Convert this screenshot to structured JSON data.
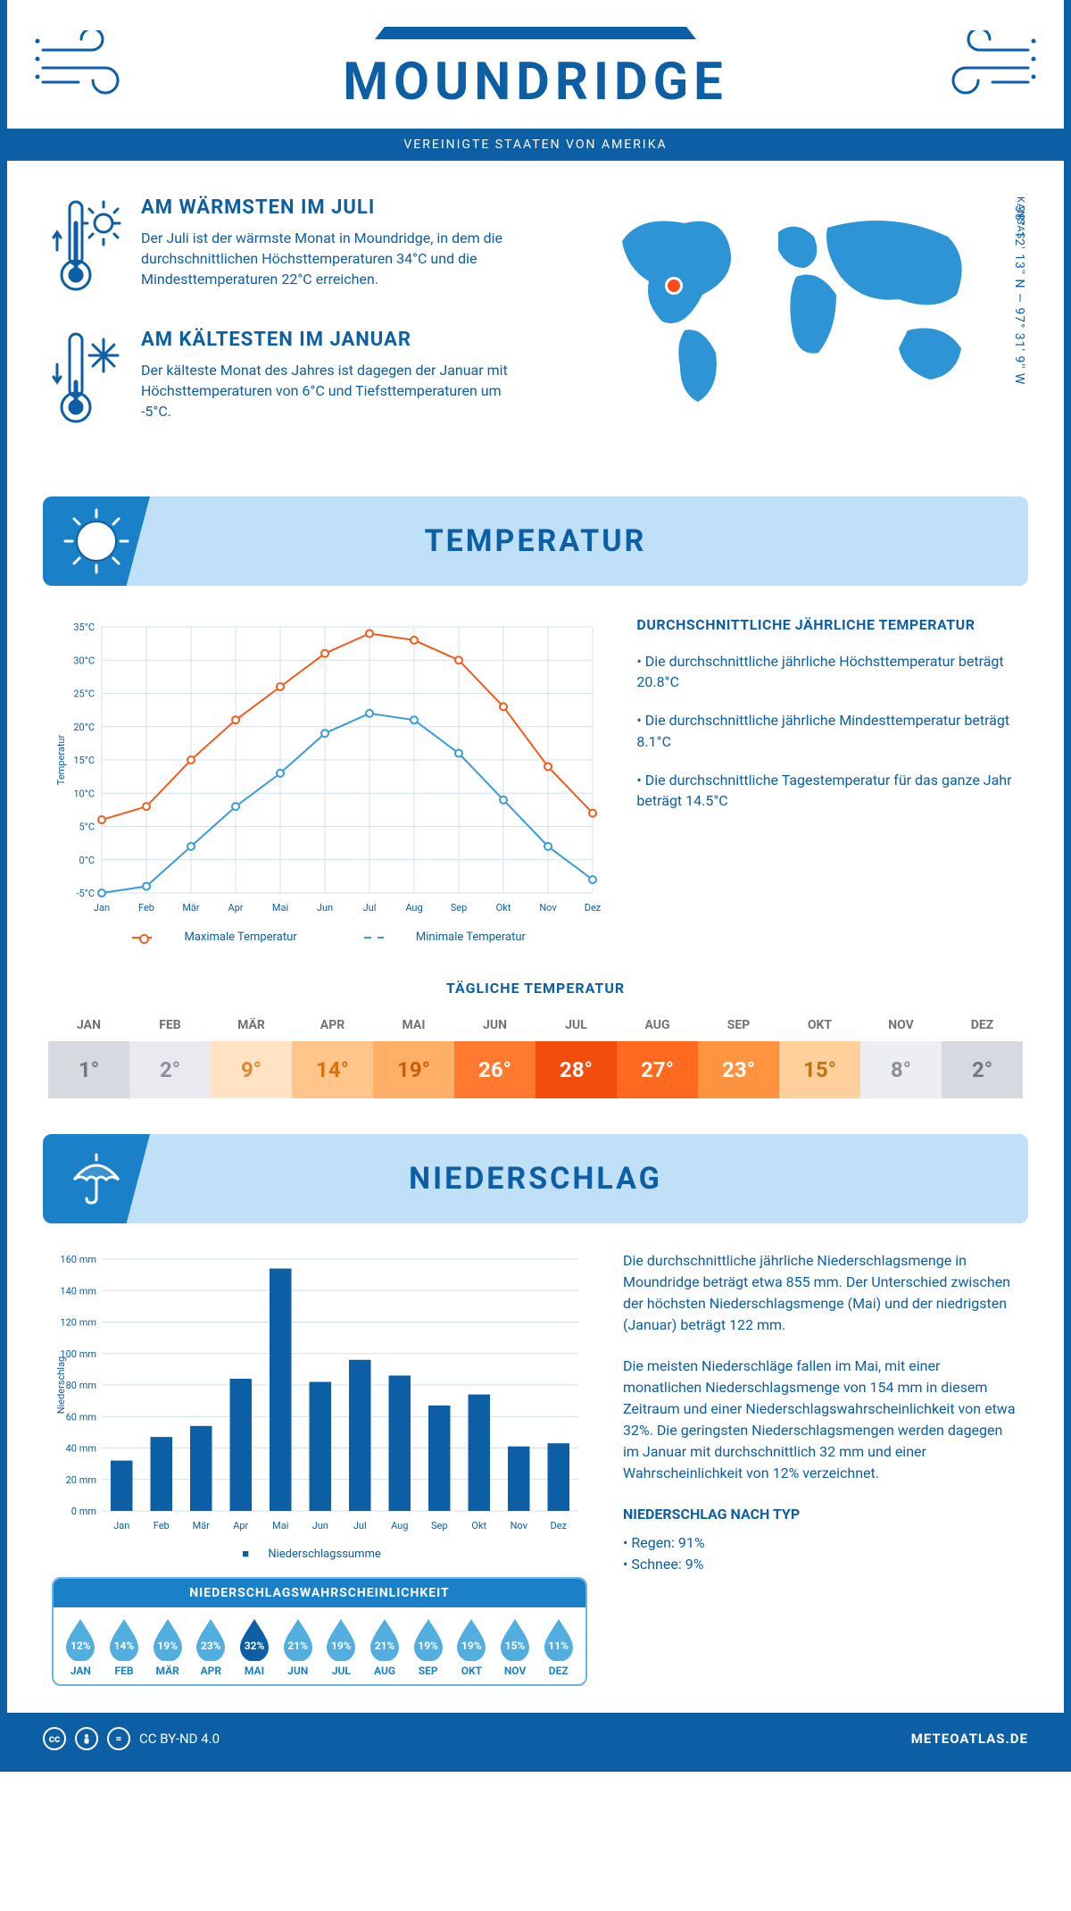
{
  "header": {
    "city": "MOUNDRIDGE",
    "country": "VEREINIGTE STAATEN VON AMERIKA",
    "state": "KANSAS",
    "coordinates": "38° 12' 13'' N — 97° 31' 9'' W"
  },
  "intro": {
    "warm_title": "AM WÄRMSTEN IM JULI",
    "warm_text": "Der Juli ist der wärmste Monat in Moundridge, in dem die durchschnittlichen Höchsttemperaturen 34°C und die Mindesttemperaturen 22°C erreichen.",
    "cold_title": "AM KÄLTESTEN IM JANUAR",
    "cold_text": "Der kälteste Monat des Jahres ist dagegen der Januar mit Höchsttemperaturen von 6°C und Tiefsttemperaturen um -5°C."
  },
  "temperature": {
    "section_title": "TEMPERATUR",
    "chart": {
      "type": "line",
      "months": [
        "Jan",
        "Feb",
        "Mär",
        "Apr",
        "Mai",
        "Jun",
        "Jul",
        "Aug",
        "Sep",
        "Okt",
        "Nov",
        "Dez"
      ],
      "max_values": [
        6,
        8,
        15,
        21,
        26,
        31,
        34,
        33,
        30,
        23,
        14,
        7
      ],
      "min_values": [
        -5,
        -4,
        2,
        8,
        13,
        19,
        22,
        21,
        16,
        9,
        2,
        -3
      ],
      "max_color": "#f25c1f",
      "min_color": "#3a9bd9",
      "ylim": [
        -5,
        35
      ],
      "ytick_step": 5,
      "y_unit": "°C",
      "ylabel": "Temperatur",
      "grid_color": "#d3e0ec",
      "background_color": "#ffffff",
      "line_width": 2,
      "marker_size": 4,
      "legend_max": "Maximale Temperatur",
      "legend_min": "Minimale Temperatur"
    },
    "copy_title": "DURCHSCHNITTLICHE JÄHRLICHE TEMPERATUR",
    "copy_bullets": [
      "• Die durchschnittliche jährliche Höchsttemperatur beträgt 20.8°C",
      "• Die durchschnittliche jährliche Mindesttemperatur beträgt 8.1°C",
      "• Die durchschnittliche Tagestemperatur für das ganze Jahr beträgt 14.5°C"
    ],
    "daily_title": "TÄGLICHE TEMPERATUR",
    "daily": {
      "months": [
        "JAN",
        "FEB",
        "MÄR",
        "APR",
        "MAI",
        "JUN",
        "JUL",
        "AUG",
        "SEP",
        "OKT",
        "NOV",
        "DEZ"
      ],
      "values": [
        "1°",
        "2°",
        "9°",
        "14°",
        "19°",
        "26°",
        "28°",
        "27°",
        "23°",
        "15°",
        "8°",
        "2°"
      ],
      "bg_colors": [
        "#d6d9e0",
        "#e8eaef",
        "#ffe3c2",
        "#ffc58a",
        "#ffb066",
        "#ff7a2e",
        "#f24d0d",
        "#ff6a1f",
        "#ff933f",
        "#ffcf9c",
        "#eceef2",
        "#d6d9e0"
      ],
      "text_colors": [
        "#6f7684",
        "#8b909c",
        "#e08a2f",
        "#d6730f",
        "#c85f06",
        "#ffffff",
        "#ffffff",
        "#ffffff",
        "#ffffff",
        "#c5700f",
        "#8b909c",
        "#6f7684"
      ]
    }
  },
  "precipitation": {
    "section_title": "NIEDERSCHLAG",
    "chart": {
      "type": "bar",
      "months": [
        "Jan",
        "Feb",
        "Mär",
        "Apr",
        "Mai",
        "Jun",
        "Jul",
        "Aug",
        "Sep",
        "Okt",
        "Nov",
        "Dez"
      ],
      "values_mm": [
        32,
        47,
        54,
        84,
        154,
        82,
        96,
        86,
        67,
        74,
        41,
        43
      ],
      "bar_color": "#0c5ea5",
      "ylim": [
        0,
        160
      ],
      "ytick_step": 20,
      "y_unit": " mm",
      "ylabel": "Niederschlag",
      "grid_color": "#d3e0ec",
      "bar_width": 0.55,
      "legend": "Niederschlagssumme"
    },
    "copy_p1": "Die durchschnittliche jährliche Niederschlagsmenge in Moundridge beträgt etwa 855 mm. Der Unterschied zwischen der höchsten Niederschlagsmenge (Mai) und der niedrigsten (Januar) beträgt 122 mm.",
    "copy_p2": "Die meisten Niederschläge fallen im Mai, mit einer monatlichen Niederschlagsmenge von 154 mm in diesem Zeitraum und einer Niederschlagswahrscheinlichkeit von etwa 32%. Die geringsten Niederschlagsmengen werden dagegen im Januar mit durchschnittlich 32 mm und einer Wahrscheinlichkeit von 12% verzeichnet.",
    "by_type_title": "NIEDERSCHLAG NACH TYP",
    "by_type_rain": "• Regen: 91%",
    "by_type_snow": "• Schnee: 9%",
    "probability": {
      "title": "NIEDERSCHLAGSWAHRSCHEINLICHKEIT",
      "months": [
        "JAN",
        "FEB",
        "MÄR",
        "APR",
        "MAI",
        "JUN",
        "JUL",
        "AUG",
        "SEP",
        "OKT",
        "NOV",
        "DEZ"
      ],
      "values": [
        "12%",
        "14%",
        "19%",
        "23%",
        "32%",
        "21%",
        "19%",
        "21%",
        "19%",
        "19%",
        "15%",
        "11%"
      ],
      "max_index": 4,
      "drop_color": "#53aee0",
      "drop_max_color": "#0c5ea5"
    }
  },
  "footer": {
    "license": "CC BY-ND 4.0",
    "site": "METEOATLAS.DE"
  },
  "colors": {
    "primary": "#0c5ea5",
    "light_blue": "#bfe0f7",
    "mid_blue": "#1a80c7"
  }
}
